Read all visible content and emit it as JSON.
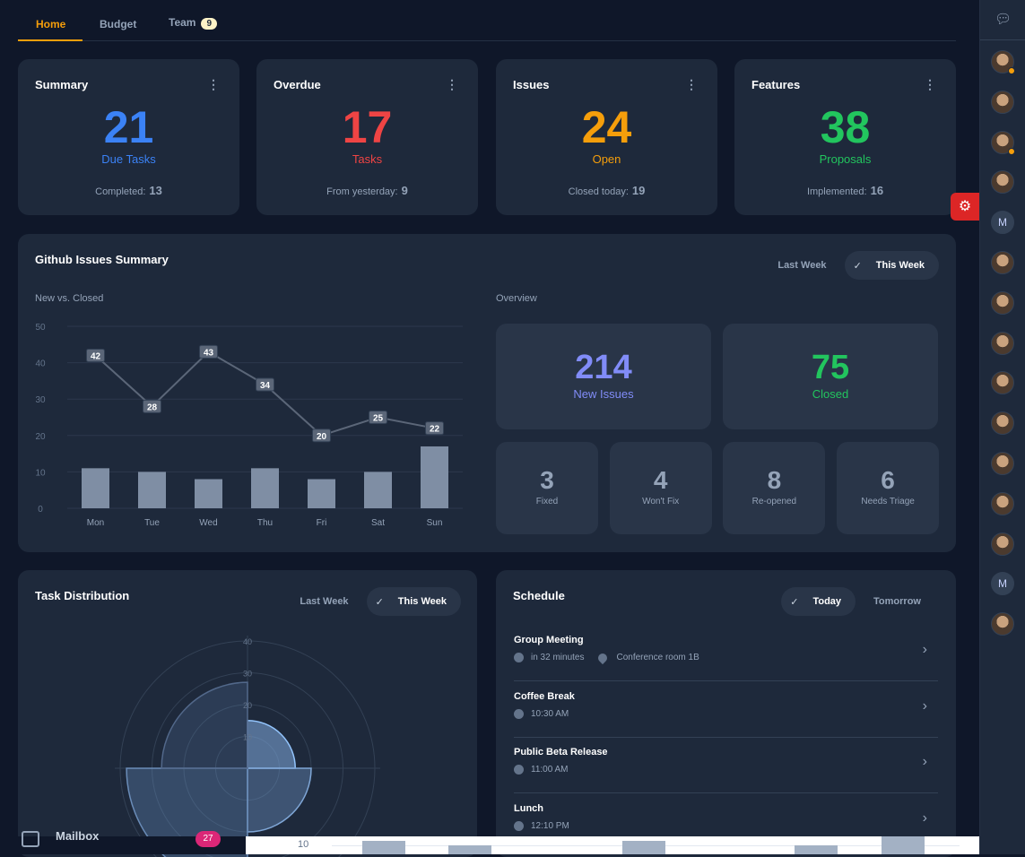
{
  "tabs": [
    {
      "label": "Home",
      "active": true
    },
    {
      "label": "Budget"
    },
    {
      "label": "Team",
      "badge": "9"
    }
  ],
  "stats": [
    {
      "title": "Summary",
      "value": "21",
      "label": "Due Tasks",
      "foot_label": "Completed:",
      "foot_value": "13",
      "color": "#3b82f6"
    },
    {
      "title": "Overdue",
      "value": "17",
      "label": "Tasks",
      "foot_label": "From yesterday:",
      "foot_value": "9",
      "color": "#ef4444"
    },
    {
      "title": "Issues",
      "value": "24",
      "label": "Open",
      "foot_label": "Closed today:",
      "foot_value": "19",
      "color": "#f59e0b"
    },
    {
      "title": "Features",
      "value": "38",
      "label": "Proposals",
      "foot_label": "Implemented:",
      "foot_value": "16",
      "color": "#22c55e"
    }
  ],
  "github": {
    "title": "Github Issues Summary",
    "toggle": {
      "off": "Last Week",
      "on": "This Week"
    },
    "chart_label": "New vs. Closed",
    "overview_label": "Overview",
    "big": [
      {
        "value": "214",
        "label": "New Issues",
        "color": "#818cf8"
      },
      {
        "value": "75",
        "label": "Closed",
        "color": "#22c55e"
      }
    ],
    "small": [
      {
        "value": "3",
        "label": "Fixed"
      },
      {
        "value": "4",
        "label": "Won't Fix"
      },
      {
        "value": "8",
        "label": "Re-opened"
      },
      {
        "value": "6",
        "label": "Needs Triage"
      }
    ]
  },
  "chart_data": [
    {
      "type": "bar+line",
      "categories": [
        "Mon",
        "Tue",
        "Wed",
        "Thu",
        "Fri",
        "Sat",
        "Sun"
      ],
      "ylim": [
        0,
        50
      ],
      "yticks": [
        "0",
        "10",
        "20",
        "30",
        "40",
        "50"
      ],
      "series": [
        {
          "type": "line",
          "values": [
            42,
            28,
            43,
            34,
            20,
            25,
            22
          ]
        },
        {
          "type": "bar",
          "values": [
            11,
            10,
            8,
            11,
            8,
            10,
            17
          ]
        }
      ],
      "grid": true
    },
    {
      "type": "polar-area",
      "values": [
        15,
        20,
        38,
        27
      ],
      "rticks": [
        "10",
        "20",
        "30",
        "40"
      ],
      "rlim": [
        0,
        40
      ]
    }
  ],
  "task": {
    "title": "Task Distribution",
    "toggle": {
      "off": "Last Week",
      "on": "This Week"
    }
  },
  "schedule": {
    "title": "Schedule",
    "toggle": {
      "on": "Today",
      "off": "Tomorrow"
    },
    "items": [
      {
        "title": "Group Meeting",
        "time": "in 32 minutes",
        "location": "Conference room 1B"
      },
      {
        "title": "Coffee Break",
        "time": "10:30 AM"
      },
      {
        "title": "Public Beta Release",
        "time": "11:00 AM"
      },
      {
        "title": "Lunch",
        "time": "12:10 PM"
      }
    ]
  },
  "sidebar": {
    "avatars": [
      "user",
      "user",
      "user",
      "user",
      "M",
      "user",
      "user",
      "user",
      "user",
      "user",
      "user",
      "user",
      "user",
      "M",
      "user"
    ]
  },
  "underlay": {
    "mailbox": "Mailbox",
    "mailbox_badge": "27",
    "tick": "10"
  }
}
